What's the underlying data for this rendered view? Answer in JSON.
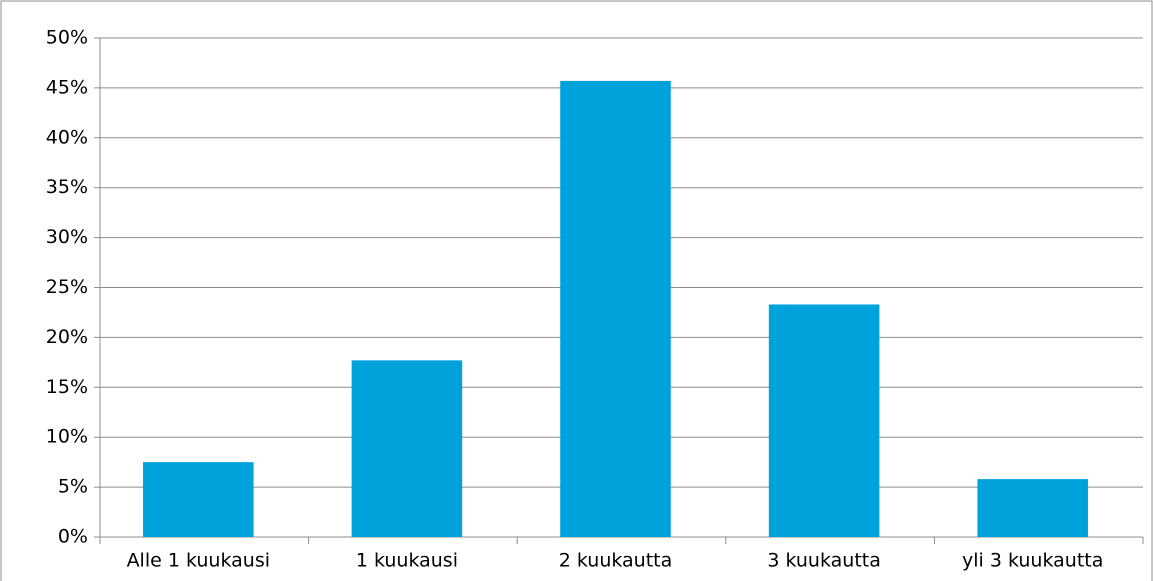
{
  "chart_data": {
    "type": "bar",
    "categories": [
      "Alle 1 kuukausi",
      "1 kuukausi",
      "2 kuukautta",
      "3 kuukautta",
      "yli 3 kuukautta"
    ],
    "values": [
      7.5,
      17.7,
      45.7,
      23.3,
      5.8
    ],
    "color": "#00a2dc",
    "ylim": [
      0,
      50
    ],
    "yticks": [
      {
        "value": 0,
        "label": "0%"
      },
      {
        "value": 5,
        "label": "5%"
      },
      {
        "value": 10,
        "label": "10%"
      },
      {
        "value": 15,
        "label": "15%"
      },
      {
        "value": 20,
        "label": "20%"
      },
      {
        "value": 25,
        "label": "25%"
      },
      {
        "value": 30,
        "label": "30%"
      },
      {
        "value": 35,
        "label": "35%"
      },
      {
        "value": 40,
        "label": "40%"
      },
      {
        "value": 45,
        "label": "45%"
      },
      {
        "value": 50,
        "label": "50%"
      }
    ],
    "grid": true
  }
}
